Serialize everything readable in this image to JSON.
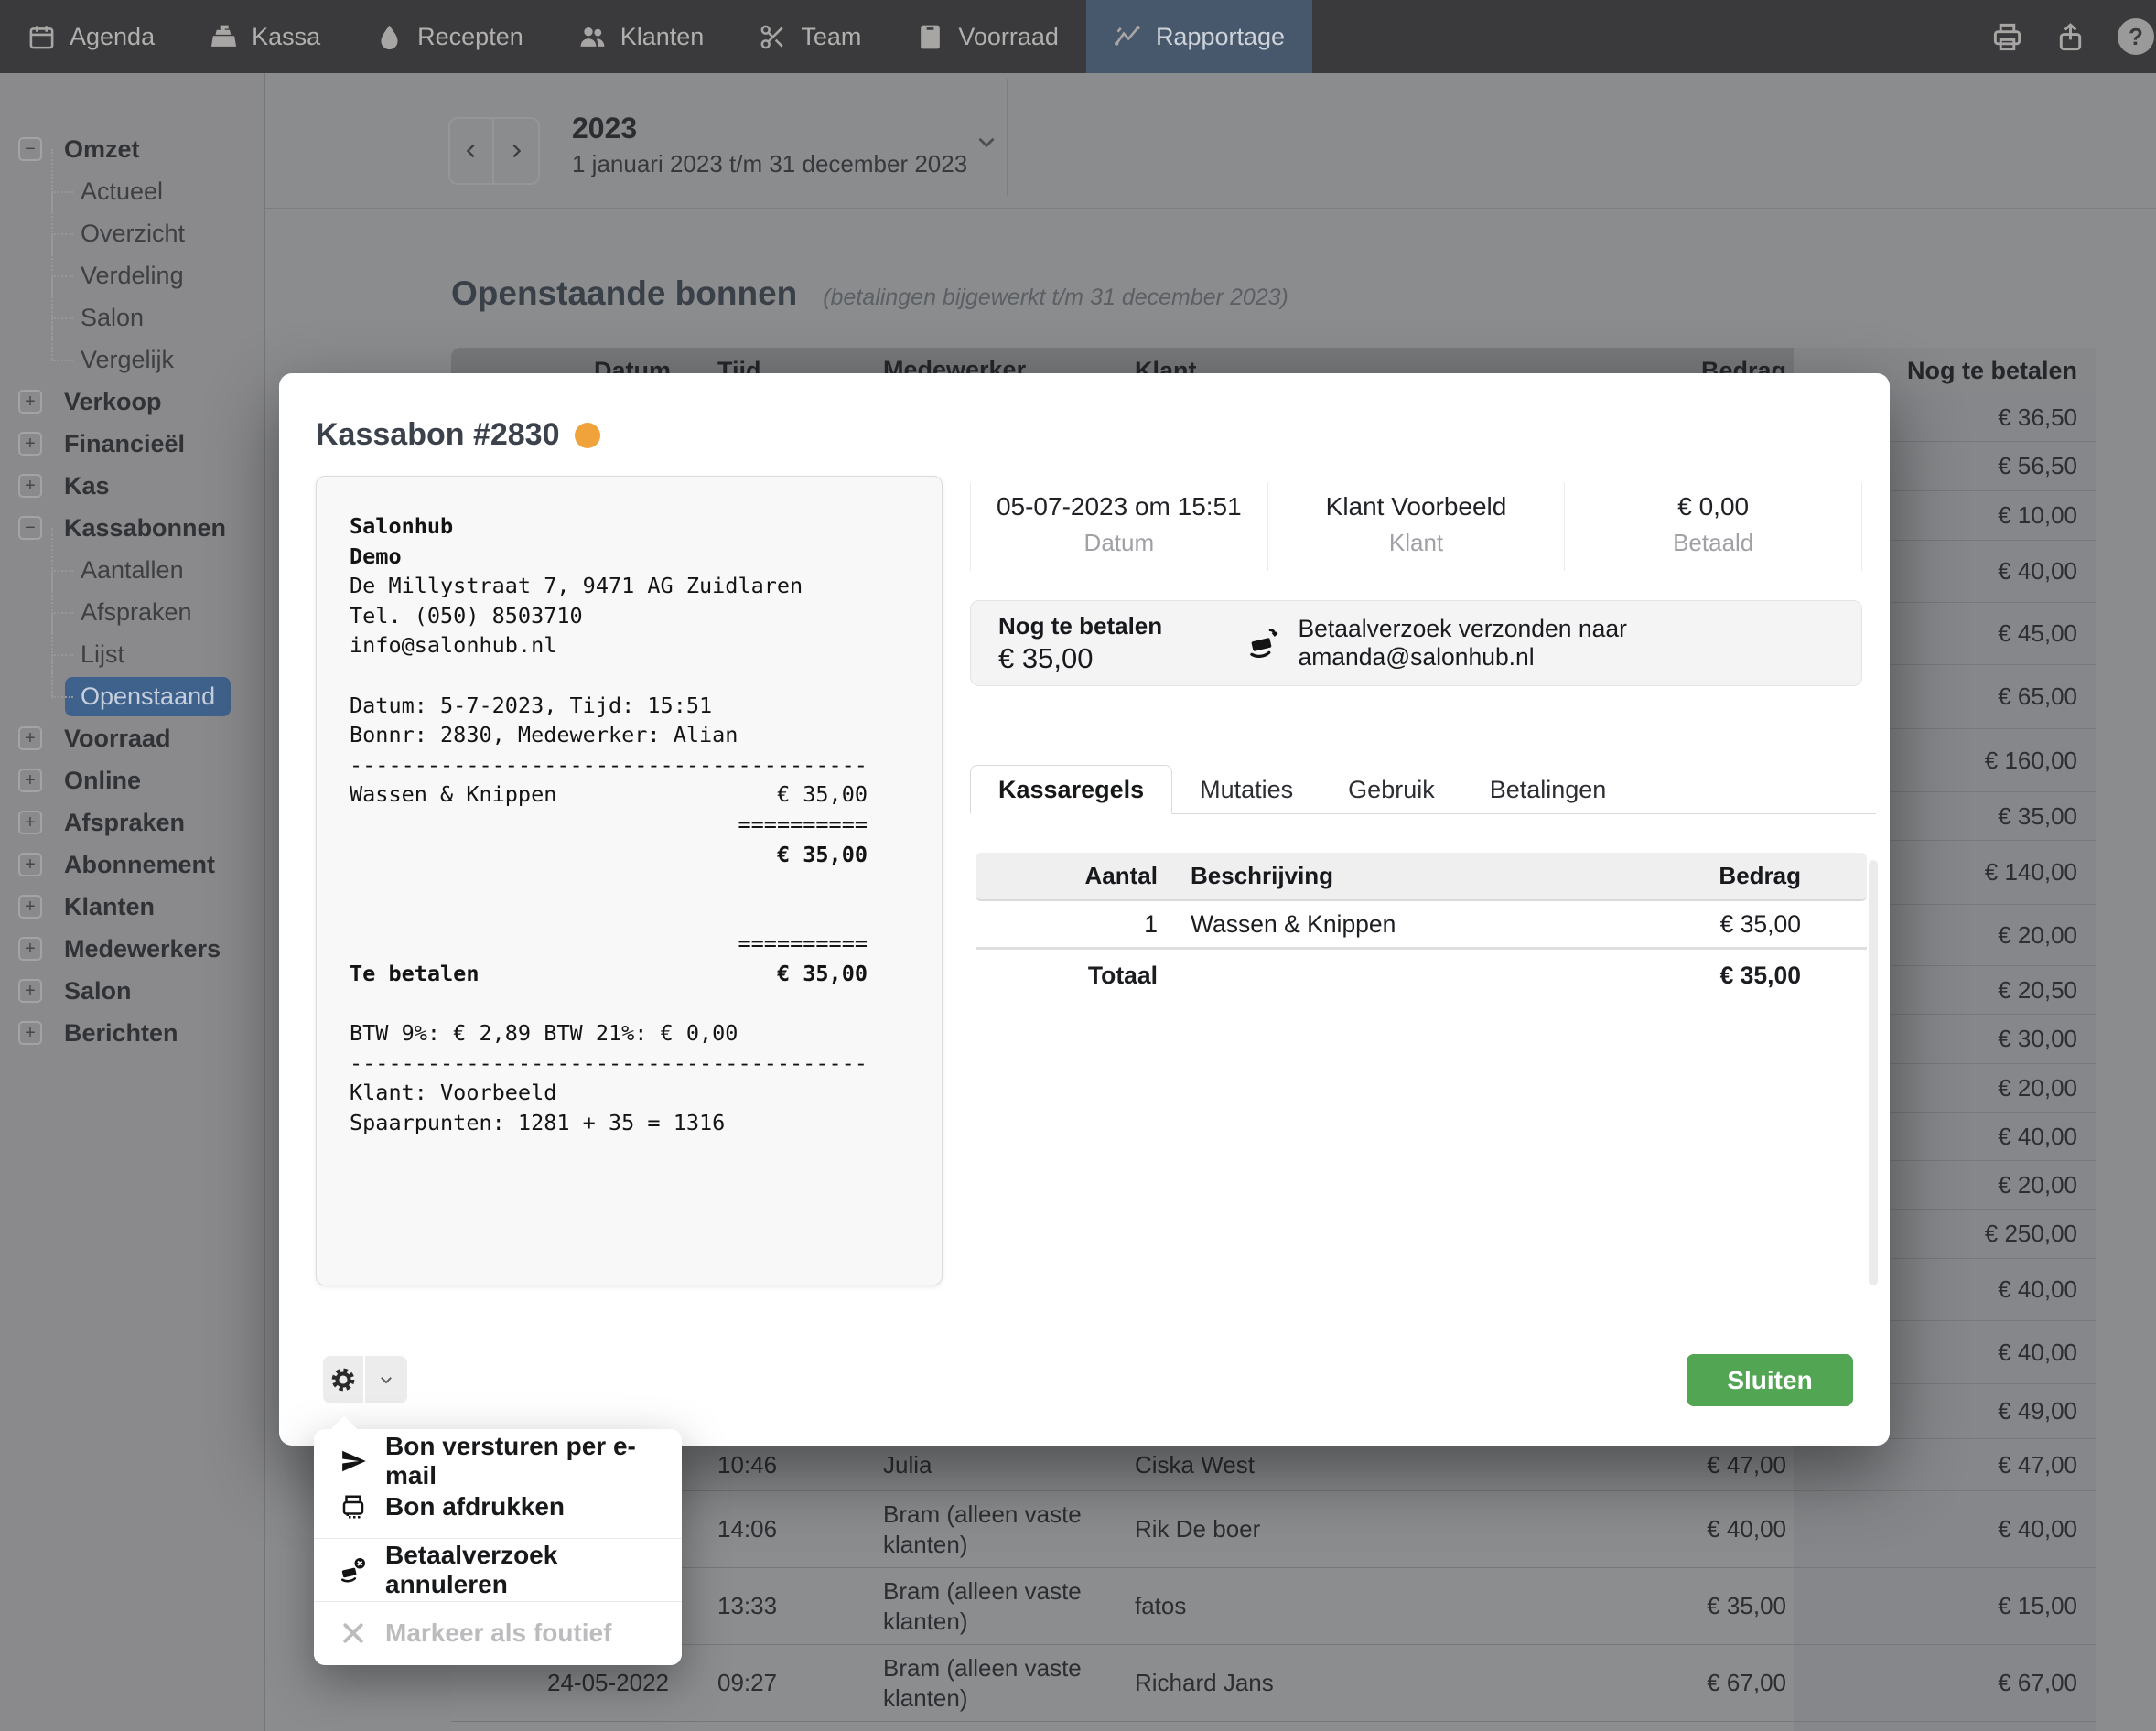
{
  "colors": {
    "accent_blue": "#3f628c",
    "status_dot": "#f0a23b",
    "success_green": "#52a552",
    "active_tab_bg": "#47586d"
  },
  "navbar": {
    "items": [
      {
        "label": "Agenda",
        "icon": "calendar-icon"
      },
      {
        "label": "Kassa",
        "icon": "cash-register-icon"
      },
      {
        "label": "Recepten",
        "icon": "droplet-icon"
      },
      {
        "label": "Klanten",
        "icon": "users-icon"
      },
      {
        "label": "Team",
        "icon": "scissors-icon"
      },
      {
        "label": "Voorraad",
        "icon": "inventory-icon"
      },
      {
        "label": "Rapportage",
        "icon": "chart-line-icon",
        "active": true
      }
    ],
    "right_icons": [
      "printer-icon",
      "share-icon",
      "help-icon"
    ],
    "help_glyph": "?"
  },
  "sidebar": {
    "items": [
      {
        "label": "Omzet",
        "kind": "parent",
        "expander": "−"
      },
      {
        "label": "Actueel",
        "kind": "child"
      },
      {
        "label": "Overzicht",
        "kind": "child"
      },
      {
        "label": "Verdeling",
        "kind": "child"
      },
      {
        "label": "Salon",
        "kind": "child"
      },
      {
        "label": "Vergelijk",
        "kind": "child",
        "last": true
      },
      {
        "label": "Verkoop",
        "kind": "parent",
        "expander": "+"
      },
      {
        "label": "Financieël",
        "kind": "parent",
        "expander": "+"
      },
      {
        "label": "Kas",
        "kind": "parent",
        "expander": "+"
      },
      {
        "label": "Kassabonnen",
        "kind": "parent",
        "expander": "−"
      },
      {
        "label": "Aantallen",
        "kind": "child"
      },
      {
        "label": "Afspraken",
        "kind": "child"
      },
      {
        "label": "Lijst",
        "kind": "child"
      },
      {
        "label": "Openstaand",
        "kind": "child",
        "selected": true,
        "last": true
      },
      {
        "label": "Voorraad",
        "kind": "parent",
        "expander": "+"
      },
      {
        "label": "Online",
        "kind": "parent",
        "expander": "+"
      },
      {
        "label": "Afspraken",
        "kind": "parent",
        "expander": "+"
      },
      {
        "label": "Abonnement",
        "kind": "parent",
        "expander": "+"
      },
      {
        "label": "Klanten",
        "kind": "parent",
        "expander": "+"
      },
      {
        "label": "Medewerkers",
        "kind": "parent",
        "expander": "+"
      },
      {
        "label": "Salon",
        "kind": "parent",
        "expander": "+"
      },
      {
        "label": "Berichten",
        "kind": "parent",
        "expander": "+"
      }
    ]
  },
  "period": {
    "year": "2023",
    "range": "1 januari 2023 t/m 31 december 2023"
  },
  "page": {
    "title": "Openstaande bonnen",
    "subtitle": "(betalingen bijgewerkt t/m 31 december 2023)"
  },
  "table": {
    "columns": [
      "Datum",
      "Tijd",
      "Medewerker",
      "Klant",
      "Bedrag",
      "Nog te betalen"
    ],
    "rows": [
      {
        "datum": "",
        "tijd": "",
        "medewerker": "",
        "klant": "",
        "bedrag": "",
        "nog": "€ 36,50"
      },
      {
        "datum": "",
        "tijd": "",
        "medewerker": "",
        "klant": "",
        "bedrag": "",
        "nog": "€ 56,50"
      },
      {
        "datum": "",
        "tijd": "",
        "medewerker": "",
        "klant": "",
        "bedrag": "",
        "nog": "€ 10,00"
      },
      {
        "datum": "",
        "tijd": "",
        "medewerker": "",
        "klant": "",
        "bedrag": "",
        "nog": "€ 40,00"
      },
      {
        "datum": "",
        "tijd": "",
        "medewerker": "",
        "klant": "",
        "bedrag": "",
        "nog": "€ 45,00"
      },
      {
        "datum": "",
        "tijd": "",
        "medewerker": "",
        "klant": "",
        "bedrag": "",
        "nog": "€ 65,00"
      },
      {
        "datum": "",
        "tijd": "",
        "medewerker": "",
        "klant": "",
        "bedrag": "",
        "nog": "€ 160,00"
      },
      {
        "datum": "",
        "tijd": "",
        "medewerker": "",
        "klant": "",
        "bedrag": "",
        "nog": "€ 35,00"
      },
      {
        "datum": "",
        "tijd": "",
        "medewerker": "",
        "klant": "",
        "bedrag": "",
        "nog": "€ 140,00"
      },
      {
        "datum": "",
        "tijd": "",
        "medewerker": "",
        "klant": "",
        "bedrag": "",
        "nog": "€ 20,00"
      },
      {
        "datum": "",
        "tijd": "",
        "medewerker": "",
        "klant": "",
        "bedrag": "",
        "nog": "€ 20,50"
      },
      {
        "datum": "",
        "tijd": "",
        "medewerker": "",
        "klant": "",
        "bedrag": "",
        "nog": "€ 30,00"
      },
      {
        "datum": "",
        "tijd": "",
        "medewerker": "",
        "klant": "",
        "bedrag": "",
        "nog": "€ 20,00"
      },
      {
        "datum": "",
        "tijd": "",
        "medewerker": "",
        "klant": "",
        "bedrag": "",
        "nog": "€ 40,00"
      },
      {
        "datum": "",
        "tijd": "",
        "medewerker": "",
        "klant": "",
        "bedrag": "",
        "nog": "€ 20,00"
      },
      {
        "datum": "",
        "tijd": "",
        "medewerker": "",
        "klant": "",
        "bedrag": "",
        "nog": "€ 250,00"
      },
      {
        "datum": "",
        "tijd": "",
        "medewerker": "",
        "klant": "",
        "bedrag": "",
        "nog": "€ 40,00"
      },
      {
        "datum": "",
        "tijd": "",
        "medewerker": "",
        "klant": "",
        "bedrag": "",
        "nog": "€ 40,00"
      },
      {
        "datum": "",
        "tijd": "",
        "medewerker": "",
        "klant": "",
        "bedrag": "",
        "nog": "€ 49,00"
      },
      {
        "datum": "",
        "tijd": "10:46",
        "medewerker": "Julia",
        "klant": "Ciska West",
        "bedrag": "€ 47,00",
        "nog": "€ 47,00"
      },
      {
        "datum": "",
        "tijd": "14:06",
        "medewerker": "Bram (alleen vaste klanten)",
        "klant": "Rik De boer",
        "bedrag": "€ 40,00",
        "nog": "€ 40,00"
      },
      {
        "datum": "",
        "tijd": "13:33",
        "medewerker": "Bram (alleen vaste klanten)",
        "klant": "fatos",
        "bedrag": "€ 35,00",
        "nog": "€ 15,00"
      },
      {
        "datum": "24-05-2022",
        "tijd": "09:27",
        "medewerker": "Bram (alleen vaste klanten)",
        "klant": "Richard Jans",
        "bedrag": "€ 67,00",
        "nog": "€ 67,00"
      },
      {
        "datum": "",
        "tijd": "",
        "medewerker": "",
        "klant": "",
        "bedrag": "",
        "nog": ""
      }
    ]
  },
  "modal": {
    "title": "Kassabon #2830",
    "receipt": [
      {
        "l": "Salonhub",
        "b": 1
      },
      {
        "l": "Demo",
        "b": 1
      },
      {
        "l": "De Millystraat 7, 9471 AG Zuidlaren"
      },
      {
        "l": "Tel. (050) 8503710"
      },
      {
        "l": "info@salonhub.nl"
      },
      {},
      {
        "l": "Datum: 5-7-2023, Tijd: 15:51"
      },
      {
        "l": "Bonnr: 2830, Medewerker: Alian"
      },
      {
        "d": 1
      },
      {
        "l": "Wassen & Knippen",
        "r": "€ 35,00"
      },
      {
        "r": "=========="
      },
      {
        "r": "€ 35,00",
        "b": 1
      },
      {},
      {},
      {
        "r": "=========="
      },
      {
        "l": "Te betalen",
        "r": "€ 35,00",
        "b": 1
      },
      {},
      {
        "l": "BTW 9%: € 2,89 BTW 21%: € 0,00"
      },
      {
        "d": 1
      },
      {
        "l": "Klant: Voorbeeld"
      },
      {
        "l": "Spaarpunten: 1281 + 35 = 1316"
      }
    ],
    "info": [
      {
        "value": "05-07-2023 om 15:51",
        "label": "Datum"
      },
      {
        "value": "Klant Voorbeeld",
        "label": "Klant"
      },
      {
        "value": "€ 0,00",
        "label": "Betaald"
      }
    ],
    "payment": {
      "label": "Nog te betalen",
      "amount": "€ 35,00",
      "message": "Betaalverzoek verzonden naar amanda@salonhub.nl"
    },
    "tabs": [
      {
        "label": "Kassaregels",
        "active": true
      },
      {
        "label": "Mutaties"
      },
      {
        "label": "Gebruik"
      },
      {
        "label": "Betalingen"
      }
    ],
    "lines_table": {
      "columns": [
        "Aantal",
        "Beschrijving",
        "Bedrag"
      ],
      "rows": [
        {
          "aantal": "1",
          "beschrijving": "Wassen & Knippen",
          "bedrag": "€ 35,00"
        }
      ],
      "total_label": "Totaal",
      "total_value": "€ 35,00"
    },
    "close_label": "Sluiten"
  },
  "menu": {
    "items": [
      {
        "label": "Bon versturen per e-mail"
      },
      {
        "label": "Bon afdrukken"
      },
      {
        "label": "Betaalverzoek annuleren"
      },
      {
        "label": "Markeer als foutief",
        "disabled": true
      }
    ]
  }
}
